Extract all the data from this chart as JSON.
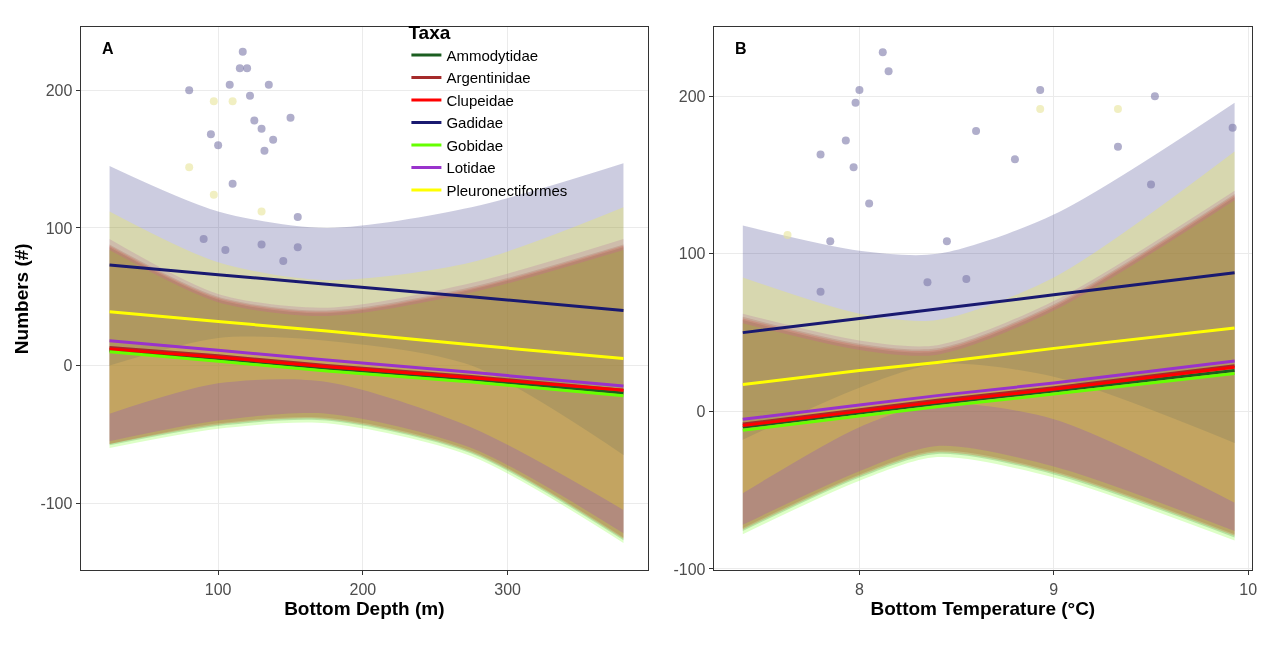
{
  "chart_data": [
    {
      "type": "line",
      "title": "A",
      "xlabel": "Bottom Depth (m)",
      "ylabel": "Numbers (#)",
      "legend_title": "Taxa",
      "legend": "top right",
      "grid": true,
      "xlim": [
        5,
        397
      ],
      "xticks": [
        100,
        200,
        300
      ],
      "ylim": [
        -149,
        246
      ],
      "yticks": [
        -100,
        0,
        100,
        200
      ],
      "series": [
        {
          "type": "scatter",
          "marker": "circle",
          "color": "#7b78a8",
          "x": [
            80,
            95,
            100,
            108,
            110,
            115,
            117,
            120,
            122,
            125,
            130,
            132,
            135,
            138,
            145,
            150,
            155,
            90,
            105,
            130,
            155
          ],
          "values": [
            200,
            168,
            160,
            204,
            132,
            216,
            228,
            216,
            196,
            178,
            172,
            156,
            204,
            164,
            76,
            180,
            108,
            92,
            84,
            88,
            86
          ]
        },
        {
          "type": "scatter",
          "marker": "circle",
          "color": "#e8e49a",
          "x": [
            80,
            97,
            97,
            110,
            130
          ],
          "values": [
            144,
            192,
            124,
            192,
            112
          ]
        },
        {
          "name": "Ammodytidae",
          "color": "#1b5e20",
          "x": [
            25,
            100,
            175,
            275,
            380
          ],
          "values": [
            11,
            5,
            -2,
            -10,
            -20
          ],
          "lower": [
            -58,
            -44,
            -40,
            -64,
            -127
          ],
          "upper": [
            86,
            48,
            38,
            55,
            86
          ]
        },
        {
          "name": "Argentinidae",
          "color": "#a52a2a",
          "x": [
            25,
            100,
            175,
            275,
            380
          ],
          "values": [
            13,
            7,
            0,
            -8,
            -18
          ],
          "lower": [
            -57,
            -42,
            -38,
            -62,
            -125
          ],
          "upper": [
            88,
            50,
            40,
            57,
            88
          ]
        },
        {
          "name": "Clupeidae",
          "color": "#ff0000",
          "x": [
            25,
            100,
            175,
            275,
            380
          ],
          "values": [
            12,
            6,
            -1,
            -9,
            -18
          ],
          "lower": [
            -57,
            -43,
            -39,
            -63,
            -126
          ],
          "upper": [
            87,
            49,
            39,
            56,
            87
          ]
        },
        {
          "name": "Gadidae",
          "color": "#191970",
          "x": [
            25,
            100,
            175,
            275,
            380
          ],
          "values": [
            73,
            66,
            59,
            50,
            40
          ],
          "lower": [
            0,
            20,
            18,
            0,
            -65
          ],
          "upper": [
            145,
            112,
            100,
            115,
            147
          ]
        },
        {
          "name": "Gobidae",
          "color": "#66ff00",
          "x": [
            25,
            100,
            175,
            275,
            380
          ],
          "values": [
            10,
            3,
            -4,
            -12,
            -22
          ],
          "lower": [
            -60,
            -46,
            -42,
            -66,
            -129
          ],
          "upper": [
            84,
            46,
            36,
            53,
            84
          ]
        },
        {
          "name": "Lotidae",
          "color": "#9933cc",
          "x": [
            25,
            100,
            175,
            275,
            380
          ],
          "values": [
            18,
            11,
            4,
            -5,
            -15
          ],
          "lower": [
            -55,
            -40,
            -35,
            -60,
            -122
          ],
          "upper": [
            92,
            52,
            42,
            60,
            92
          ]
        },
        {
          "name": "Pleuronectiformes",
          "color": "#ffff00",
          "x": [
            25,
            100,
            175,
            275,
            380
          ],
          "values": [
            39,
            32,
            25,
            15,
            5
          ],
          "lower": [
            -35,
            -13,
            -12,
            -45,
            -105
          ],
          "upper": [
            112,
            75,
            62,
            75,
            115
          ]
        }
      ]
    },
    {
      "type": "line",
      "title": "B",
      "xlabel": "Bottom Temperature (°C)",
      "grid": true,
      "xlim": [
        7.25,
        10.02
      ],
      "xticks": [
        8,
        9,
        10
      ],
      "ylim": [
        -101,
        244
      ],
      "yticks": [
        -100,
        0,
        100,
        200
      ],
      "series": [
        {
          "type": "scatter",
          "marker": "circle",
          "color": "#7b78a8",
          "x": [
            7.8,
            7.85,
            7.93,
            7.97,
            7.98,
            8.0,
            8.05,
            8.12,
            8.15,
            8.6,
            8.8,
            8.93,
            9.33,
            9.52,
            9.5,
            9.92,
            8.45,
            8.35,
            8.55,
            7.8
          ],
          "values": [
            163,
            108,
            172,
            155,
            196,
            204,
            132,
            228,
            216,
            178,
            160,
            204,
            168,
            200,
            144,
            180,
            108,
            82,
            84,
            76
          ]
        },
        {
          "type": "scatter",
          "marker": "circle",
          "color": "#e8e49a",
          "x": [
            7.63,
            8.93,
            9.33
          ],
          "values": [
            112,
            192,
            192
          ]
        },
        {
          "color": "#1b5e20",
          "x": [
            7.4,
            8.0,
            8.4,
            9.0,
            9.93
          ],
          "values": [
            -10,
            -1,
            5,
            13,
            26
          ],
          "lower": [
            -76,
            -42,
            -27,
            -40,
            -80
          ],
          "upper": [
            58,
            41,
            38,
            66,
            136
          ]
        },
        {
          "color": "#a52a2a",
          "x": [
            7.4,
            8.0,
            8.4,
            9.0,
            9.93
          ],
          "values": [
            -8,
            1,
            7,
            15,
            29
          ],
          "lower": [
            -74,
            -40,
            -25,
            -38,
            -78
          ],
          "upper": [
            60,
            43,
            40,
            68,
            138
          ]
        },
        {
          "color": "#ff0000",
          "x": [
            7.4,
            8.0,
            8.4,
            9.0,
            9.93
          ],
          "values": [
            -9,
            0,
            6,
            14,
            28
          ],
          "lower": [
            -75,
            -41,
            -26,
            -39,
            -79
          ],
          "upper": [
            59,
            42,
            39,
            67,
            137
          ]
        },
        {
          "color": "#191970",
          "x": [
            7.4,
            8.0,
            8.4,
            9.0,
            9.93
          ],
          "values": [
            50,
            59,
            65,
            74,
            88
          ],
          "lower": [
            -18,
            15,
            30,
            22,
            -20
          ],
          "upper": [
            118,
            102,
            100,
            125,
            196
          ]
        },
        {
          "color": "#66ff00",
          "x": [
            7.4,
            8.0,
            8.4,
            9.0,
            9.93
          ],
          "values": [
            -12,
            -3,
            3,
            11,
            24
          ],
          "lower": [
            -78,
            -44,
            -29,
            -42,
            -82
          ],
          "upper": [
            56,
            39,
            36,
            64,
            134
          ]
        },
        {
          "color": "#9933cc",
          "x": [
            7.4,
            8.0,
            8.4,
            9.0,
            9.93
          ],
          "values": [
            -5,
            4,
            10,
            18,
            32
          ],
          "lower": [
            -72,
            -38,
            -22,
            -35,
            -76
          ],
          "upper": [
            62,
            45,
            42,
            70,
            140
          ]
        },
        {
          "color": "#ffff00",
          "x": [
            7.4,
            8.0,
            8.4,
            9.0,
            9.93
          ],
          "values": [
            17,
            26,
            31,
            40,
            53
          ],
          "lower": [
            -52,
            -10,
            5,
            -5,
            -58
          ],
          "upper": [
            85,
            62,
            58,
            85,
            165
          ]
        }
      ]
    }
  ]
}
